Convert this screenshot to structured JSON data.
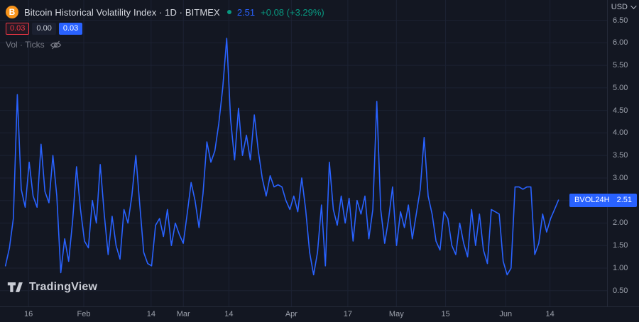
{
  "header": {
    "title": "Bitcoin Historical Volatility Index · 1D · BITMEX",
    "last_value": "2.51",
    "change": "+0.08 (+3.29%)",
    "badges": [
      {
        "value": "0.03",
        "style": "red"
      },
      {
        "value": "0.00",
        "style": "plain"
      },
      {
        "value": "0.03",
        "style": "blue"
      }
    ],
    "indicator_label": "Vol · Ticks",
    "icons": [
      "bitcoin-icon",
      "market-status-dot",
      "eye-off-icon"
    ]
  },
  "price_label": {
    "symbol": "BVOL24H",
    "value": "2.51"
  },
  "axes": {
    "currency": "USD"
  },
  "logo": {
    "text": "TradingView"
  },
  "colors": {
    "background": "#131722",
    "line_blue": "#2962ff",
    "positive_green": "#089981",
    "negative_red": "#f23645",
    "bitcoin_orange": "#f7931a",
    "axis_text": "#9ba0ab",
    "title_text": "#d6d9e0",
    "grid": "#1c2233"
  },
  "chart_data": {
    "type": "line",
    "title": "Bitcoin Historical Volatility Index · 1D · BITMEX",
    "series_name": "BVOL24H",
    "xlabel": "",
    "ylabel": "USD",
    "grid": true,
    "last_value": 2.51,
    "change": 0.08,
    "change_pct": 3.29,
    "line_color": "#2962ff",
    "ylim": [
      0.15,
      6.95
    ],
    "y_ticks": [
      0.5,
      1.0,
      1.5,
      2.0,
      2.5,
      3.0,
      3.5,
      4.0,
      4.5,
      5.0,
      5.5,
      6.0,
      6.5
    ],
    "x_ticks": [
      {
        "label": "16",
        "pos": 0.047
      },
      {
        "label": "Feb",
        "pos": 0.138
      },
      {
        "label": "14",
        "pos": 0.249
      },
      {
        "label": "Mar",
        "pos": 0.302
      },
      {
        "label": "14",
        "pos": 0.377
      },
      {
        "label": "Apr",
        "pos": 0.48
      },
      {
        "label": "17",
        "pos": 0.573
      },
      {
        "label": "May",
        "pos": 0.653
      },
      {
        "label": "15",
        "pos": 0.734
      },
      {
        "label": "Jun",
        "pos": 0.833
      },
      {
        "label": "14",
        "pos": 0.906
      }
    ],
    "x_range": [
      0.009,
      0.92
    ],
    "values": [
      1.05,
      1.45,
      2.1,
      4.85,
      2.75,
      2.35,
      3.35,
      2.6,
      2.35,
      3.75,
      2.7,
      2.45,
      3.5,
      2.6,
      0.9,
      1.65,
      1.15,
      2.05,
      3.25,
      2.3,
      1.6,
      1.45,
      2.5,
      2.0,
      3.3,
      2.2,
      1.3,
      2.15,
      1.5,
      1.2,
      2.3,
      2.0,
      2.6,
      3.5,
      2.4,
      1.35,
      1.1,
      1.05,
      1.95,
      2.1,
      1.7,
      2.3,
      1.5,
      2.0,
      1.75,
      1.55,
      2.2,
      2.9,
      2.5,
      1.9,
      2.65,
      3.8,
      3.35,
      3.6,
      4.2,
      5.0,
      6.1,
      4.3,
      3.4,
      4.55,
      3.5,
      3.95,
      3.4,
      4.4,
      3.6,
      3.0,
      2.6,
      3.05,
      2.8,
      2.85,
      2.8,
      2.5,
      2.3,
      2.6,
      2.25,
      3.0,
      2.3,
      1.35,
      0.85,
      1.35,
      2.4,
      1.05,
      3.35,
      2.3,
      1.95,
      2.6,
      2.0,
      2.55,
      1.6,
      2.5,
      2.2,
      2.6,
      1.65,
      2.3,
      4.7,
      2.3,
      1.55,
      2.1,
      2.8,
      1.5,
      2.25,
      1.9,
      2.4,
      1.65,
      2.2,
      2.75,
      3.9,
      2.6,
      2.2,
      1.6,
      1.4,
      2.25,
      2.1,
      1.5,
      1.3,
      2.0,
      1.55,
      1.25,
      2.3,
      1.5,
      2.2,
      1.4,
      1.1,
      2.3,
      2.25,
      2.2,
      1.15,
      0.85,
      1.0,
      2.8,
      2.8,
      2.75,
      2.8,
      2.8,
      1.3,
      1.55,
      2.2,
      1.8,
      2.1,
      2.3,
      2.51
    ]
  }
}
